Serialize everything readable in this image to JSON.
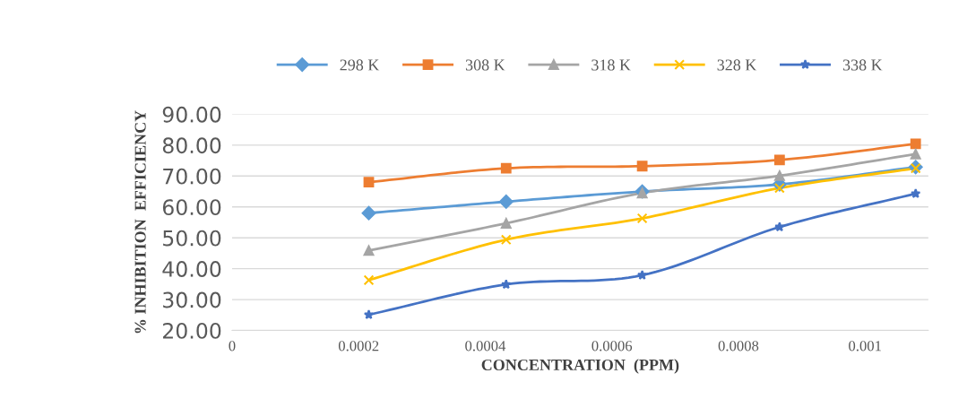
{
  "chart_data": {
    "type": "line",
    "xlabel": "CONCENTRATION  (PPM)",
    "ylabel": "% INHIBITION  EFFICIENCY",
    "x": [
      0.000216,
      0.000433,
      0.000648,
      0.000865,
      0.00108
    ],
    "xlim": [
      0,
      0.0011
    ],
    "xticks": [
      0,
      0.0002,
      0.0004,
      0.0006,
      0.0008,
      0.001
    ],
    "ylim": [
      20,
      90
    ],
    "yticks": [
      {
        "value": 20,
        "label": "20.00"
      },
      {
        "value": 30,
        "label": "30.00"
      },
      {
        "value": 40,
        "label": "40.00"
      },
      {
        "value": 50,
        "label": "50.00"
      },
      {
        "value": 60,
        "label": "60.00"
      },
      {
        "value": 70,
        "label": "70.00"
      },
      {
        "value": 80,
        "label": "80.00"
      },
      {
        "value": 90,
        "label": "90.00"
      }
    ],
    "grid": "y",
    "legend": "top",
    "line_style": "solid",
    "series": [
      {
        "name": "298 K",
        "color": "#5b9bd5",
        "marker": "diamond",
        "values": [
          58.0,
          61.7,
          65.0,
          67.3,
          72.9
        ]
      },
      {
        "name": "308 K",
        "color": "#ed7d31",
        "marker": "square",
        "values": [
          68.0,
          72.5,
          73.2,
          75.2,
          80.4
        ]
      },
      {
        "name": "318 K",
        "color": "#a5a5a5",
        "marker": "triangle",
        "values": [
          45.9,
          54.7,
          64.5,
          70.1,
          77.1
        ]
      },
      {
        "name": "328 K",
        "color": "#ffc000",
        "marker": "cross",
        "values": [
          36.3,
          49.4,
          56.3,
          66.1,
          72.5
        ]
      },
      {
        "name": "338 K",
        "color": "#4472c4",
        "marker": "star",
        "values": [
          25.1,
          34.9,
          37.9,
          53.5,
          64.3
        ]
      }
    ]
  }
}
